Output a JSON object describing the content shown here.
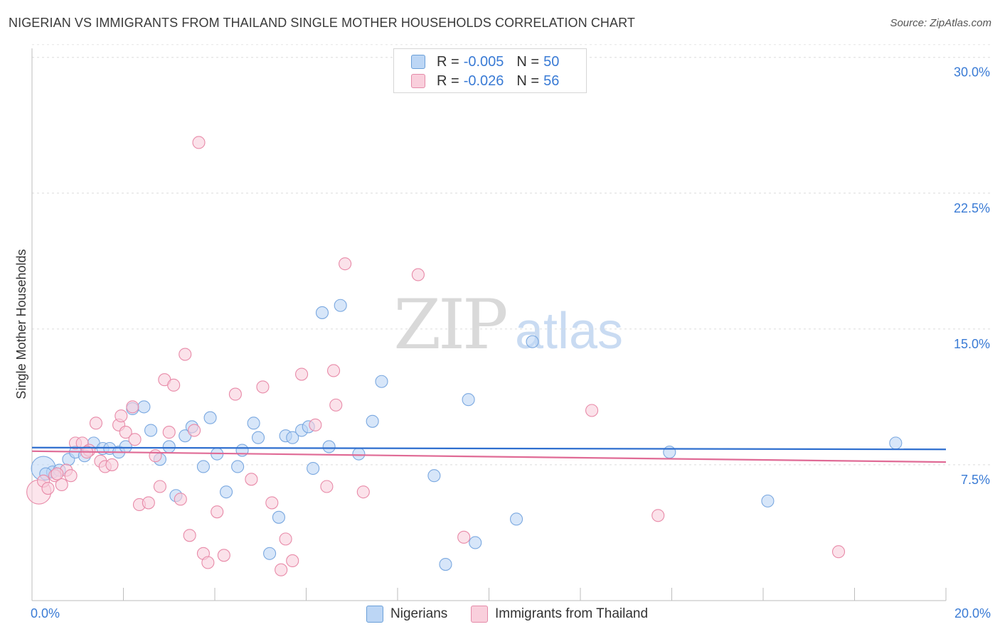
{
  "title": "NIGERIAN VS IMMIGRANTS FROM THAILAND SINGLE MOTHER HOUSEHOLDS CORRELATION CHART",
  "source": "Source: ZipAtlas.com",
  "watermark": {
    "zip": "ZIP",
    "atlas": "atlas"
  },
  "legend": {
    "rows": [
      {
        "r_label": "R =",
        "r_value": "-0.005",
        "n_label": "N =",
        "n_value": "50",
        "color": "#a8c8f0",
        "border": "#6a9fd8"
      },
      {
        "r_label": "R =",
        "r_value": "-0.026",
        "n_label": "N =",
        "n_value": "56",
        "color": "#f7c0d2",
        "border": "#e48aa8"
      }
    ]
  },
  "bottom_legend": [
    {
      "label": "Nigerians",
      "color": "#bcd6f5",
      "border": "#6a9fd8"
    },
    {
      "label": "Immigrants from Thailand",
      "color": "#f9cfdc",
      "border": "#e48aa8"
    }
  ],
  "chart_data": {
    "type": "scatter",
    "title": "NIGERIAN VS IMMIGRANTS FROM THAILAND SINGLE MOTHER HOUSEHOLDS CORRELATION CHART",
    "xlabel": "",
    "ylabel": "Single Mother Households",
    "xlim": [
      0,
      20
    ],
    "ylim": [
      0,
      30.5
    ],
    "x_tick_labels": [
      "0.0%",
      "20.0%"
    ],
    "y_ticks": [
      7.5,
      15.0,
      22.5,
      30.0
    ],
    "y_tick_labels": [
      "7.5%",
      "15.0%",
      "22.5%",
      "30.0%"
    ],
    "grid": "horizontal dashed",
    "legend_position": "top-center",
    "series": [
      {
        "name": "Nigerians",
        "color": "#7aa8e0",
        "fill": "#bcd6f5",
        "trend": {
          "x": [
            0,
            20
          ],
          "y": [
            8.45,
            8.35
          ],
          "color": "#2f6fcf"
        },
        "points": [
          {
            "x": 0.25,
            "y": 7.3,
            "big": true
          },
          {
            "x": 0.45,
            "y": 7.1
          },
          {
            "x": 0.6,
            "y": 7.2
          },
          {
            "x": 0.8,
            "y": 7.8
          },
          {
            "x": 0.95,
            "y": 8.2
          },
          {
            "x": 1.15,
            "y": 8.0
          },
          {
            "x": 1.35,
            "y": 8.7
          },
          {
            "x": 1.55,
            "y": 8.4
          },
          {
            "x": 1.7,
            "y": 8.4
          },
          {
            "x": 1.9,
            "y": 8.2
          },
          {
            "x": 2.05,
            "y": 8.5
          },
          {
            "x": 2.2,
            "y": 10.6
          },
          {
            "x": 2.45,
            "y": 10.7
          },
          {
            "x": 2.6,
            "y": 9.4
          },
          {
            "x": 2.8,
            "y": 7.8
          },
          {
            "x": 3.0,
            "y": 8.5
          },
          {
            "x": 3.15,
            "y": 5.8
          },
          {
            "x": 3.35,
            "y": 9.1
          },
          {
            "x": 3.5,
            "y": 9.6
          },
          {
            "x": 3.75,
            "y": 7.4
          },
          {
            "x": 3.9,
            "y": 10.1
          },
          {
            "x": 4.05,
            "y": 8.1
          },
          {
            "x": 4.25,
            "y": 6.0
          },
          {
            "x": 4.5,
            "y": 7.4
          },
          {
            "x": 4.6,
            "y": 8.3
          },
          {
            "x": 4.85,
            "y": 9.8
          },
          {
            "x": 4.95,
            "y": 9.0
          },
          {
            "x": 5.2,
            "y": 2.6
          },
          {
            "x": 5.4,
            "y": 4.6
          },
          {
            "x": 5.55,
            "y": 9.1
          },
          {
            "x": 5.7,
            "y": 9.0
          },
          {
            "x": 5.9,
            "y": 9.4
          },
          {
            "x": 6.05,
            "y": 9.6
          },
          {
            "x": 6.15,
            "y": 7.3
          },
          {
            "x": 6.35,
            "y": 15.9
          },
          {
            "x": 6.5,
            "y": 8.5
          },
          {
            "x": 6.75,
            "y": 16.3
          },
          {
            "x": 7.15,
            "y": 8.1
          },
          {
            "x": 7.45,
            "y": 9.9
          },
          {
            "x": 7.65,
            "y": 12.1
          },
          {
            "x": 8.8,
            "y": 6.9
          },
          {
            "x": 9.05,
            "y": 2.0
          },
          {
            "x": 9.7,
            "y": 3.2
          },
          {
            "x": 9.55,
            "y": 11.1
          },
          {
            "x": 10.6,
            "y": 4.5
          },
          {
            "x": 10.95,
            "y": 14.3
          },
          {
            "x": 13.95,
            "y": 8.2
          },
          {
            "x": 16.1,
            "y": 5.5
          },
          {
            "x": 18.9,
            "y": 8.7
          },
          {
            "x": 0.3,
            "y": 7.0
          }
        ]
      },
      {
        "name": "Immigrants from Thailand",
        "color": "#e88aa8",
        "fill": "#f9cfdc",
        "trend": {
          "x": [
            0,
            20
          ],
          "y": [
            8.25,
            7.65
          ],
          "color": "#e06b96"
        },
        "points": [
          {
            "x": 0.15,
            "y": 6.0,
            "big": true
          },
          {
            "x": 0.25,
            "y": 6.6
          },
          {
            "x": 0.35,
            "y": 6.2
          },
          {
            "x": 0.5,
            "y": 6.9
          },
          {
            "x": 0.65,
            "y": 6.4
          },
          {
            "x": 0.75,
            "y": 7.2
          },
          {
            "x": 0.85,
            "y": 6.9
          },
          {
            "x": 0.95,
            "y": 8.7
          },
          {
            "x": 1.1,
            "y": 8.7
          },
          {
            "x": 1.25,
            "y": 8.3
          },
          {
            "x": 1.4,
            "y": 9.8
          },
          {
            "x": 1.5,
            "y": 7.7
          },
          {
            "x": 1.6,
            "y": 7.4
          },
          {
            "x": 1.75,
            "y": 7.5
          },
          {
            "x": 1.9,
            "y": 9.7
          },
          {
            "x": 1.95,
            "y": 10.2
          },
          {
            "x": 2.05,
            "y": 9.3
          },
          {
            "x": 2.2,
            "y": 10.7
          },
          {
            "x": 2.25,
            "y": 8.9
          },
          {
            "x": 2.35,
            "y": 5.3
          },
          {
            "x": 2.55,
            "y": 5.4
          },
          {
            "x": 2.7,
            "y": 8.0
          },
          {
            "x": 2.8,
            "y": 6.3
          },
          {
            "x": 2.9,
            "y": 12.2
          },
          {
            "x": 3.0,
            "y": 9.3
          },
          {
            "x": 3.1,
            "y": 11.9
          },
          {
            "x": 3.25,
            "y": 5.6
          },
          {
            "x": 3.35,
            "y": 13.6
          },
          {
            "x": 3.45,
            "y": 3.6
          },
          {
            "x": 3.55,
            "y": 9.4
          },
          {
            "x": 3.65,
            "y": 25.3
          },
          {
            "x": 3.75,
            "y": 2.6
          },
          {
            "x": 3.85,
            "y": 2.1
          },
          {
            "x": 4.05,
            "y": 4.9
          },
          {
            "x": 4.2,
            "y": 2.5
          },
          {
            "x": 4.45,
            "y": 11.4
          },
          {
            "x": 4.8,
            "y": 6.7
          },
          {
            "x": 5.05,
            "y": 11.8
          },
          {
            "x": 5.25,
            "y": 5.4
          },
          {
            "x": 5.45,
            "y": 1.7
          },
          {
            "x": 5.55,
            "y": 3.4
          },
          {
            "x": 5.7,
            "y": 2.2
          },
          {
            "x": 5.9,
            "y": 12.5
          },
          {
            "x": 6.2,
            "y": 9.7
          },
          {
            "x": 6.45,
            "y": 6.3
          },
          {
            "x": 6.6,
            "y": 12.7
          },
          {
            "x": 6.65,
            "y": 10.8
          },
          {
            "x": 6.85,
            "y": 18.6
          },
          {
            "x": 7.25,
            "y": 6.0
          },
          {
            "x": 8.45,
            "y": 18.0
          },
          {
            "x": 9.45,
            "y": 3.5
          },
          {
            "x": 12.25,
            "y": 10.5
          },
          {
            "x": 13.7,
            "y": 4.7
          },
          {
            "x": 17.65,
            "y": 2.7
          },
          {
            "x": 0.55,
            "y": 7.0
          },
          {
            "x": 1.2,
            "y": 8.2
          }
        ]
      }
    ]
  }
}
